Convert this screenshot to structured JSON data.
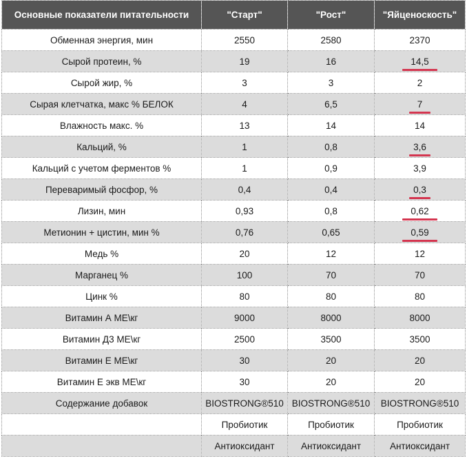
{
  "table": {
    "headers": [
      "Основные показатели питательности",
      "\"Старт\"",
      "\"Рост\"",
      "\"Яйценоскость\""
    ],
    "rows": [
      {
        "label": "Обменная энергия, мин",
        "values": [
          "2550",
          "2580",
          "2370"
        ]
      },
      {
        "label": "Сырой протеин, %",
        "values": [
          "19",
          "16",
          "14,5"
        ]
      },
      {
        "label": "Сырой жир, %",
        "values": [
          "3",
          "3",
          "2"
        ]
      },
      {
        "label": "Сырая клетчатка, макс % БЕЛОК",
        "values": [
          "4",
          "6,5",
          "7"
        ]
      },
      {
        "label": "Влажность макс. %",
        "values": [
          "13",
          "14",
          "14"
        ]
      },
      {
        "label": "Кальций, %",
        "values": [
          "1",
          "0,8",
          "3,6"
        ]
      },
      {
        "label": "Кальций с учетом ферментов %",
        "values": [
          "1",
          "0,9",
          "3,9"
        ]
      },
      {
        "label": "Переваримый фосфор, %",
        "values": [
          "0,4",
          "0,4",
          "0,3"
        ]
      },
      {
        "label": "Лизин, мин",
        "values": [
          "0,93",
          "0,8",
          "0,62"
        ]
      },
      {
        "label": "Метионин + цистин, мин %",
        "values": [
          "0,76",
          "0,65",
          "0,59"
        ]
      },
      {
        "label": "Медь %",
        "values": [
          "20",
          "12",
          "12"
        ]
      },
      {
        "label": "Марганец %",
        "values": [
          "100",
          "70",
          "70"
        ]
      },
      {
        "label": "Цинк %",
        "values": [
          "80",
          "80",
          "80"
        ]
      },
      {
        "label": "Витамин А МЕ\\кг",
        "values": [
          "9000",
          "8000",
          "8000"
        ]
      },
      {
        "label": "Витамин Д3 МЕ\\кг",
        "values": [
          "2500",
          "3500",
          "3500"
        ]
      },
      {
        "label": "Витамин Е МЕ\\кг",
        "values": [
          "30",
          "20",
          "20"
        ]
      },
      {
        "label": "Витамин Е экв МЕ\\кг",
        "values": [
          "30",
          "20",
          "20"
        ]
      },
      {
        "label": "Содержание добавок",
        "values": [
          "BIOSTRONG®510",
          "BIOSTRONG®510",
          "BIOSTRONG®510"
        ]
      },
      {
        "label": "",
        "values": [
          "Пробиотик",
          "Пробиотик",
          "Пробиотик"
        ]
      },
      {
        "label": "",
        "values": [
          "Антиоксидант",
          "Антиоксидант",
          "Антиоксидант"
        ]
      }
    ]
  },
  "colors": {
    "header_bg": "#555555",
    "header_text": "#ffffff",
    "row_alt_bg": "#dcdcdc",
    "row_bg": "#ffffff",
    "highlight_underline": "#d4354f"
  }
}
